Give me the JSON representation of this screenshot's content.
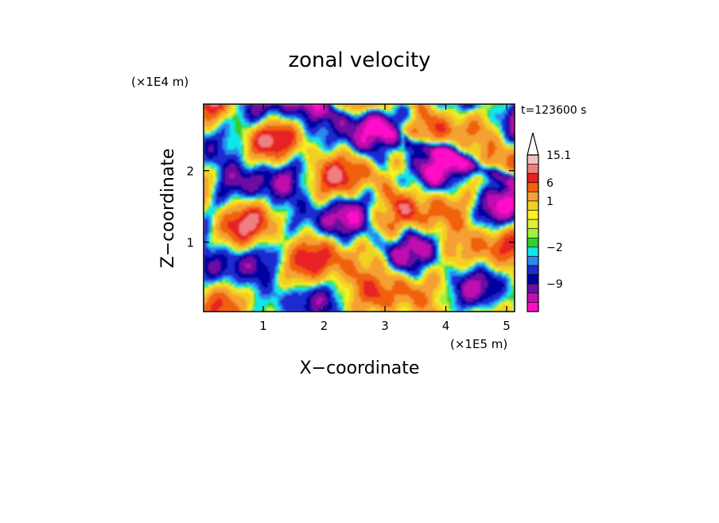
{
  "chart_data": {
    "type": "heatmap",
    "title": "zonal velocity",
    "xlabel": "X−coordinate",
    "ylabel": "Z−coordinate",
    "x_unit": "(×1E5 m)",
    "y_unit": "(×1E4 m)",
    "time_label": "t=123600 s",
    "xlim": [
      0.02,
      5.13
    ],
    "ylim": [
      0.03,
      2.93
    ],
    "x_ticks": [
      1,
      2,
      3,
      4,
      5
    ],
    "x_tick_labels": [
      "1",
      "2",
      "3",
      "4",
      "5"
    ],
    "y_ticks": [
      1,
      2
    ],
    "y_tick_labels": [
      "1",
      "2"
    ],
    "colorbar": {
      "tick_labels": [
        {
          "value": 15.1,
          "label": "15.1"
        },
        {
          "value": 6,
          "label": "6"
        },
        {
          "value": 1,
          "label": "1"
        },
        {
          "value": -2,
          "label": "−2"
        },
        {
          "value": -9,
          "label": "−9"
        }
      ],
      "levels_top_to_bottom": [
        15.1,
        12,
        9,
        6,
        3,
        1,
        0.5,
        0,
        -0.5,
        -1,
        -2,
        -3,
        -5,
        -7,
        -9,
        -12,
        -15
      ],
      "colors_top_to_bottom": [
        "#f7c0c0",
        "#ee8080",
        "#e82020",
        "#f06010",
        "#f5a030",
        "#f2d020",
        "#fff020",
        "#e0f030",
        "#a0f040",
        "#30d030",
        "#10e8e8",
        "#2a8af0",
        "#1a2cd0",
        "#0000a0",
        "#6a10a0",
        "#c010b0",
        "#ff10c8"
      ],
      "extend": "max"
    },
    "field_description": "Banded multi-scale wave pattern of zonal velocity over an X-Z section; negative jets (blue) along upper levels and a tilted band near x=3.5-5, z=2.1; central region near x=2.5, z=0.5 weak/slightly positive (yellow)."
  }
}
